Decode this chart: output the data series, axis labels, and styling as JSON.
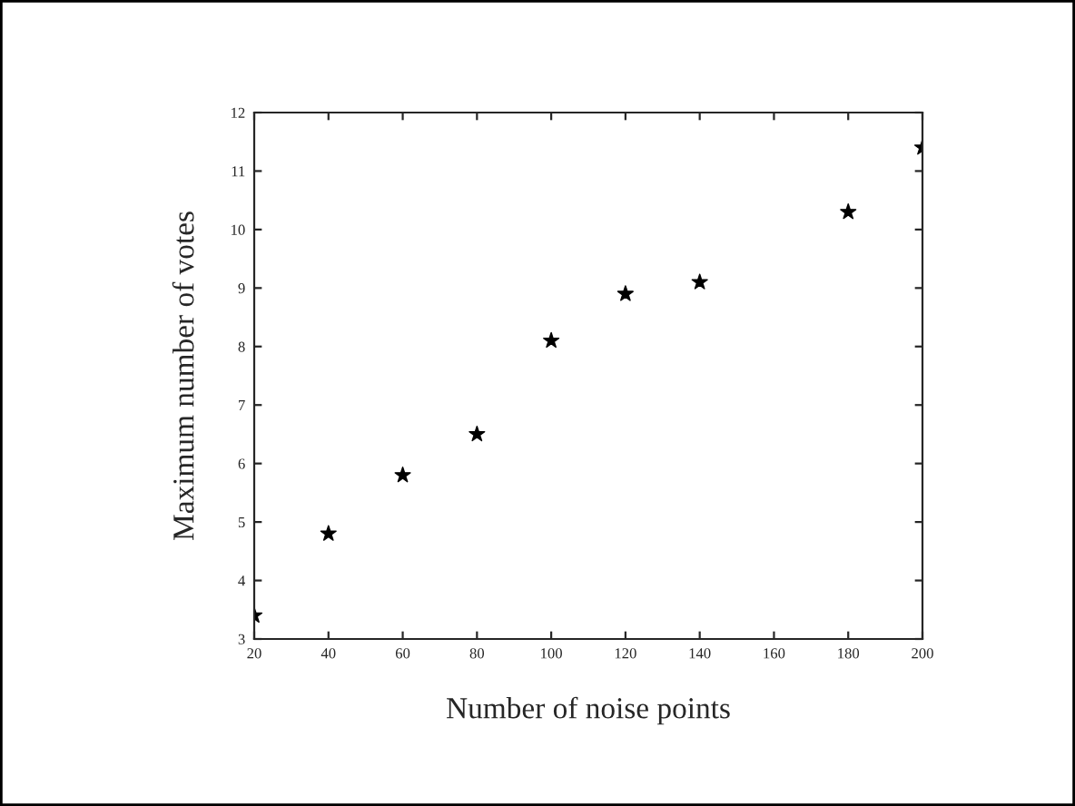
{
  "chart_data": {
    "type": "scatter",
    "xlabel": "Number of noise points",
    "ylabel": "Maximum number of votes",
    "x": [
      20,
      40,
      60,
      80,
      100,
      120,
      140,
      180,
      200
    ],
    "series": [
      {
        "color": "#000000",
        "values": [
          3.4,
          4.8,
          5.8,
          6.5,
          8.1,
          8.9,
          9.1,
          10.3,
          11.4
        ]
      }
    ],
    "xlim": [
      20,
      200
    ],
    "xticks": [
      20,
      40,
      60,
      80,
      100,
      120,
      140,
      160,
      180,
      200
    ],
    "ylim": [
      3,
      12
    ],
    "yticks": [
      3,
      4,
      5,
      6,
      7,
      8,
      9,
      10,
      11,
      12
    ],
    "marker": "star",
    "grid": false,
    "legend": false
  }
}
